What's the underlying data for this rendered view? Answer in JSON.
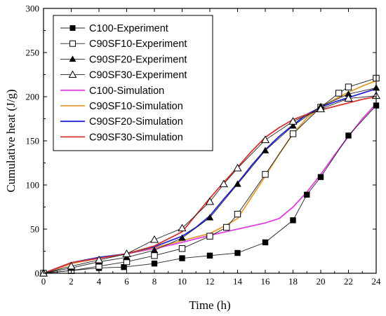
{
  "chart_data": {
    "type": "line",
    "xlabel": "Time (h)",
    "ylabel": "Cumulative heat (J/g)",
    "xlim": [
      0,
      24
    ],
    "ylim": [
      0,
      300
    ],
    "xticks": [
      0,
      2,
      4,
      6,
      8,
      10,
      12,
      14,
      16,
      18,
      20,
      22,
      24
    ],
    "yticks": [
      0,
      50,
      100,
      150,
      200,
      250,
      300
    ],
    "grid": false,
    "legend_position": "top-left",
    "series": [
      {
        "name": "C100-Experiment",
        "kind": "experiment",
        "marker": "filled-square",
        "color": "#000000",
        "x": [
          0,
          2,
          4,
          5.8,
          8,
          10,
          12,
          14,
          16,
          18,
          19,
          20,
          22,
          24
        ],
        "y": [
          0,
          3,
          6,
          7,
          11,
          17,
          20,
          23,
          35,
          60,
          89,
          109,
          156,
          190
        ]
      },
      {
        "name": "C90SF10-Experiment",
        "kind": "experiment",
        "marker": "open-square",
        "color": "#000000",
        "x": [
          0,
          2,
          4,
          6,
          8,
          10,
          12,
          13.2,
          14,
          16,
          18,
          20,
          21.3,
          22,
          24
        ],
        "y": [
          0,
          3,
          8,
          13,
          20,
          28,
          42,
          52,
          67,
          112,
          158,
          188,
          204,
          211,
          221
        ]
      },
      {
        "name": "C90SF20-Experiment",
        "kind": "experiment",
        "marker": "filled-triangle",
        "color": "#000000",
        "x": [
          0,
          2,
          4,
          6,
          8,
          10,
          12,
          14,
          16,
          18,
          20,
          22,
          24
        ],
        "y": [
          0,
          6,
          13,
          18,
          26,
          40,
          63,
          101,
          139,
          167,
          189,
          203,
          210
        ]
      },
      {
        "name": "C90SF30-Experiment",
        "kind": "experiment",
        "marker": "open-triangle",
        "color": "#000000",
        "x": [
          0,
          2,
          4,
          6,
          8,
          10,
          12,
          13,
          14,
          16,
          18,
          20,
          22,
          24
        ],
        "y": [
          0,
          8,
          15,
          22,
          38,
          51,
          81,
          101,
          119,
          151,
          172,
          186,
          198,
          201
        ]
      },
      {
        "name": "C100-Simulation",
        "kind": "simulation",
        "color": "#e040e0",
        "x": [
          0,
          1,
          2,
          4,
          6,
          8,
          10,
          12,
          14,
          16,
          17,
          18,
          19,
          20,
          21,
          22,
          23,
          24
        ],
        "y": [
          0,
          5,
          11,
          17,
          22,
          28,
          35,
          43,
          50,
          57,
          62,
          75,
          92,
          112,
          134,
          155,
          175,
          192
        ]
      },
      {
        "name": "C90SF10-Simulation",
        "kind": "simulation",
        "color": "#e39c34",
        "x": [
          0,
          1,
          2,
          4,
          6,
          8,
          10,
          12,
          13,
          14,
          15,
          16,
          17,
          18,
          19,
          20,
          21,
          22,
          23,
          24
        ],
        "y": [
          0,
          5,
          11,
          17,
          22,
          29,
          37,
          45,
          53,
          62,
          86,
          110,
          135,
          158,
          176,
          188,
          197,
          205,
          212,
          218
        ]
      },
      {
        "name": "C90SF20-Simulation",
        "kind": "simulation",
        "color": "#2323d6",
        "x": [
          0,
          1,
          2,
          4,
          6,
          8,
          10,
          11,
          12,
          13,
          14,
          15,
          16,
          17,
          18,
          19,
          20,
          21,
          22,
          23,
          24
        ],
        "y": [
          0,
          6,
          12,
          18,
          22,
          30,
          42,
          52,
          65,
          84,
          102,
          122,
          140,
          155,
          168,
          180,
          188,
          194,
          199,
          204,
          209
        ]
      },
      {
        "name": "C90SF30-Simulation",
        "kind": "simulation",
        "color": "#d6322e",
        "x": [
          0,
          1,
          2,
          4,
          6,
          8,
          10,
          11,
          12,
          13,
          14,
          15,
          16,
          17,
          18,
          19,
          20,
          21,
          22,
          23,
          24
        ],
        "y": [
          0,
          6,
          12,
          17,
          22,
          31,
          47,
          66,
          85,
          103,
          120,
          138,
          154,
          165,
          174,
          180,
          185,
          189,
          193,
          197,
          200
        ]
      }
    ]
  }
}
